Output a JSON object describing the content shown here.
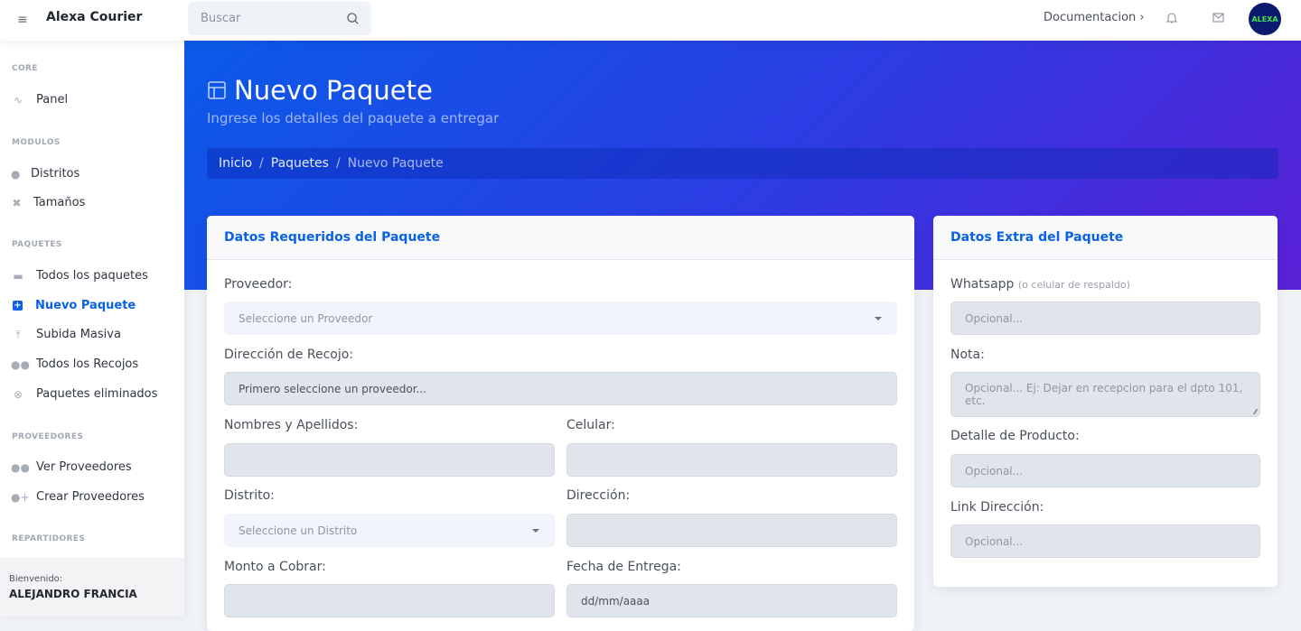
{
  "topbar": {
    "brand": "Alexa Courier",
    "search_placeholder": "Buscar",
    "documentation": "Documentacion ›",
    "avatar_text": "ALEXA"
  },
  "sidebar": {
    "sections": [
      "CORE",
      "MODULOS",
      "PAQUETES",
      "PROVEEDORES",
      "REPARTIDORES"
    ],
    "items": [
      {
        "label": "Panel",
        "icon": "activity-icon"
      },
      {
        "label": "Distritos",
        "icon": "map-pin-icon"
      },
      {
        "label": "Tamaños",
        "icon": "expand-icon"
      },
      {
        "label": "Todos los paquetes",
        "icon": "boxes-icon"
      },
      {
        "label": "Nuevo Paquete",
        "icon": "plus-square-icon",
        "active": true
      },
      {
        "label": "Subida Masiva",
        "icon": "upload-icon"
      },
      {
        "label": "Todos los Recojos",
        "icon": "users-icon"
      },
      {
        "label": "Paquetes eliminados",
        "icon": "x-circle-icon"
      },
      {
        "label": "Ver Proveedores",
        "icon": "users-icon"
      },
      {
        "label": "Crear Proveedores",
        "icon": "user-plus-icon"
      }
    ],
    "footer": {
      "subtitle": "Bienvenido:",
      "name": "ALEJANDRO FRANCIA"
    }
  },
  "header": {
    "title": "Nuevo Paquete",
    "subtitle": "Ingrese los detalles del paquete a entregar",
    "breadcrumb": [
      "Inicio",
      "Paquetes",
      "Nuevo Paquete"
    ]
  },
  "required_card": {
    "title": "Datos Requeridos del Paquete",
    "proveedor_label": "Proveedor:",
    "proveedor_value": "Seleccione un Proveedor",
    "recojo_label": "Dirección de Recojo:",
    "recojo_value": "Primero seleccione un proveedor...",
    "nombres_label": "Nombres y Apellidos:",
    "celular_label": "Celular:",
    "distrito_label": "Distrito:",
    "distrito_value": "Seleccione un Distrito",
    "direccion_label": "Dirección:",
    "monto_label": "Monto a Cobrar:",
    "fecha_label": "Fecha de Entrega:",
    "fecha_placeholder": "dd/mm/aaaa"
  },
  "extra_card": {
    "title": "Datos Extra del Paquete",
    "whatsapp_label": "Whatsapp",
    "whatsapp_hint": "(o celular de respaldo)",
    "whatsapp_placeholder": "Opcional...",
    "nota_label": "Nota:",
    "nota_placeholder": "Opcional... Ej: Dejar en recepcion para el dpto 101, etc.",
    "detalle_label": "Detalle de Producto:",
    "detalle_placeholder": "Opcional...",
    "link_label": "Link Dirección:",
    "link_placeholder": "Opcional..."
  },
  "colors": {
    "accent": "#0a61e8",
    "hero_start": "#0a5ae8",
    "hero_end": "#5a20d6"
  }
}
